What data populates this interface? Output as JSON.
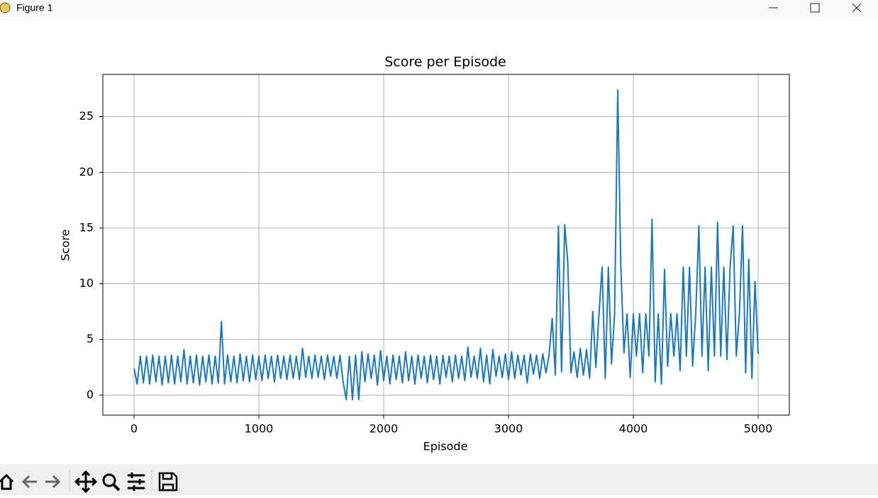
{
  "window": {
    "title": "Figure 1"
  },
  "chart_data": {
    "type": "line",
    "title": "Score per Episode",
    "x_label": "Episode",
    "y_label": "Score",
    "x": [
      0,
      25,
      50,
      75,
      100,
      125,
      150,
      175,
      200,
      225,
      250,
      275,
      300,
      325,
      350,
      375,
      400,
      425,
      450,
      475,
      500,
      525,
      550,
      575,
      600,
      625,
      650,
      675,
      700,
      725,
      750,
      775,
      800,
      825,
      850,
      875,
      900,
      925,
      950,
      975,
      1000,
      1025,
      1050,
      1075,
      1100,
      1125,
      1150,
      1175,
      1200,
      1225,
      1250,
      1275,
      1300,
      1325,
      1350,
      1375,
      1400,
      1425,
      1450,
      1475,
      1500,
      1525,
      1550,
      1575,
      1600,
      1625,
      1650,
      1675,
      1700,
      1725,
      1750,
      1775,
      1800,
      1825,
      1850,
      1875,
      1900,
      1925,
      1950,
      1975,
      2000,
      2025,
      2050,
      2075,
      2100,
      2125,
      2150,
      2175,
      2200,
      2225,
      2250,
      2275,
      2300,
      2325,
      2350,
      2375,
      2400,
      2425,
      2450,
      2475,
      2500,
      2525,
      2550,
      2575,
      2600,
      2625,
      2650,
      2675,
      2700,
      2725,
      2750,
      2775,
      2800,
      2825,
      2850,
      2875,
      2900,
      2925,
      2950,
      2975,
      3000,
      3025,
      3050,
      3075,
      3100,
      3125,
      3150,
      3175,
      3200,
      3225,
      3250,
      3275,
      3300,
      3325,
      3350,
      3375,
      3400,
      3425,
      3450,
      3475,
      3500,
      3525,
      3550,
      3575,
      3600,
      3625,
      3650,
      3675,
      3700,
      3725,
      3750,
      3775,
      3800,
      3825,
      3850,
      3875,
      3900,
      3925,
      3950,
      3975,
      4000,
      4025,
      4050,
      4075,
      4100,
      4125,
      4150,
      4175,
      4200,
      4225,
      4250,
      4275,
      4300,
      4325,
      4350,
      4375,
      4400,
      4425,
      4450,
      4475,
      4500,
      4525,
      4550,
      4575,
      4600,
      4625,
      4650,
      4675,
      4700,
      4725,
      4750,
      4775,
      4800,
      4825,
      4850,
      4875,
      4900,
      4925,
      4950,
      4975,
      5000
    ],
    "series": [
      {
        "color": "#1f77b4",
        "values": [
          2.4,
          1.0,
          3.5,
          1.1,
          3.5,
          1.0,
          3.6,
          1.2,
          3.5,
          0.9,
          3.5,
          1.1,
          3.6,
          1.0,
          3.5,
          1.2,
          4.1,
          1.0,
          3.5,
          1.1,
          3.6,
          0.9,
          3.5,
          1.2,
          3.6,
          1.0,
          3.5,
          1.1,
          6.6,
          1.0,
          3.6,
          1.2,
          3.5,
          1.1,
          3.7,
          1.3,
          3.5,
          1.2,
          3.6,
          1.4,
          3.5,
          1.3,
          3.6,
          1.5,
          3.5,
          1.2,
          3.6,
          1.5,
          3.5,
          1.4,
          3.6,
          1.5,
          3.5,
          1.4,
          4.2,
          1.6,
          3.5,
          1.5,
          3.6,
          1.6,
          3.5,
          1.4,
          3.6,
          1.7,
          3.5,
          1.5,
          3.6,
          1.2,
          -0.4,
          3.5,
          -0.4,
          3.6,
          -0.4,
          3.9,
          1.2,
          3.7,
          1.5,
          3.6,
          0.9,
          4.0,
          1.3,
          3.5,
          1.0,
          3.6,
          1.4,
          3.5,
          1.1,
          3.9,
          1.3,
          3.5,
          1.0,
          3.6,
          1.5,
          3.5,
          1.1,
          3.6,
          1.4,
          3.5,
          1.0,
          3.6,
          1.6,
          3.5,
          1.2,
          3.6,
          1.5,
          3.5,
          1.3,
          4.3,
          1.6,
          3.5,
          1.5,
          4.2,
          1.2,
          3.6,
          1.0,
          4.1,
          1.7,
          3.5,
          1.6,
          3.7,
          1.4,
          3.9,
          1.5,
          3.6,
          1.8,
          3.6,
          1.1,
          3.7,
          1.9,
          3.6,
          1.5,
          3.7,
          2.0,
          3.6,
          6.9,
          1.8,
          15.2,
          2.1,
          15.3,
          11.9,
          2.0,
          3.9,
          1.6,
          4.2,
          1.8,
          4.1,
          1.5,
          7.5,
          2.5,
          7.3,
          11.5,
          1.5,
          11.5,
          2.8,
          7.3,
          27.4,
          11.5,
          3.8,
          7.3,
          1.6,
          7.3,
          3.5,
          7.3,
          2.0,
          7.3,
          3.5,
          15.8,
          1.2,
          7.3,
          1.0,
          11.3,
          2.6,
          7.3,
          3.5,
          7.3,
          2.2,
          11.5,
          3.5,
          11.5,
          2.6,
          7.3,
          15.2,
          3.5,
          11.5,
          2.2,
          11.5,
          3.5,
          15.5,
          3.5,
          11.5,
          3.2,
          11.4,
          15.2,
          3.5,
          7.3,
          15.2,
          2.0,
          12.2,
          1.5,
          10.2,
          3.7
        ]
      }
    ],
    "xlim": [
      -250,
      5250
    ],
    "ylim": [
      -1.79,
      28.79
    ],
    "xticks": [
      0,
      1000,
      2000,
      3000,
      4000,
      5000
    ],
    "yticks": [
      0,
      5,
      10,
      15,
      20,
      25
    ],
    "grid": true
  }
}
